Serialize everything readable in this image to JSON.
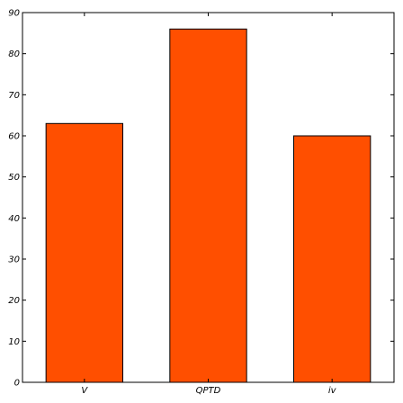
{
  "chart_data": {
    "type": "bar",
    "title": "",
    "xlabel": "",
    "ylabel": "",
    "categories": [
      "V",
      "QPTD",
      "iv"
    ],
    "values": [
      63,
      86,
      60
    ],
    "ylim": [
      0,
      90
    ],
    "yticks": [
      0,
      10,
      20,
      30,
      40,
      50,
      60,
      70,
      80,
      90
    ],
    "grid": false,
    "legend": "none",
    "colors": {
      "bar": "#ff4f00",
      "bar_edge": "#000000",
      "axis": "#000000",
      "background": "#ffffff"
    }
  }
}
